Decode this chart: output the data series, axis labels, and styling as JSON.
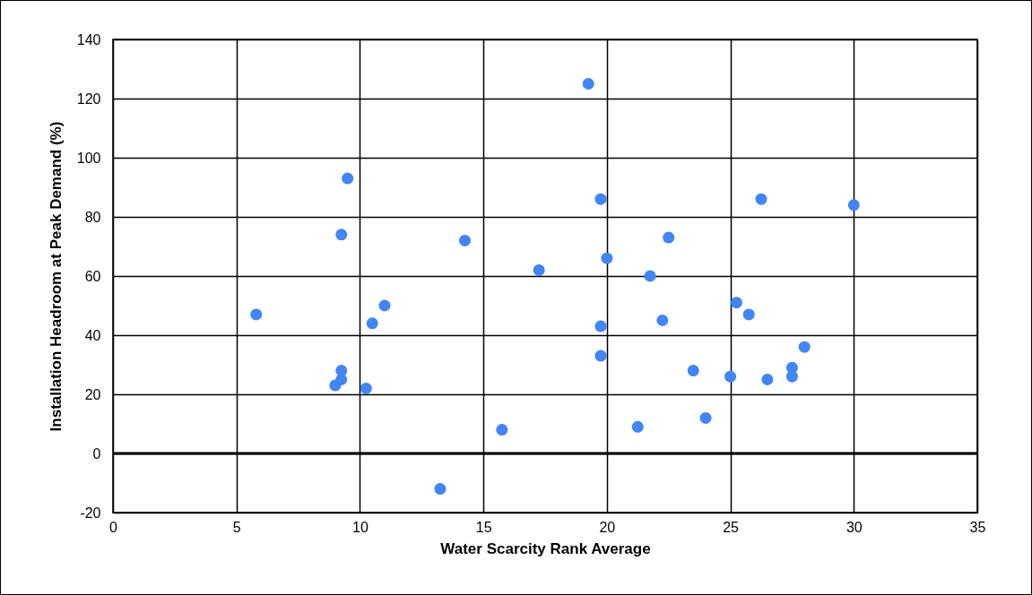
{
  "chart_data": {
    "type": "scatter",
    "xlabel": "Water Scarcity Rank Average",
    "ylabel": "Installation Headroom at Peak Demand (%)",
    "x": [
      5.8,
      9.5,
      9.25,
      9.25,
      9.25,
      9,
      10.25,
      10.5,
      11,
      14.25,
      13.25,
      15.75,
      17.25,
      19.25,
      19.75,
      20,
      19.75,
      19.75,
      21.25,
      21.75,
      22.5,
      22.25,
      23.5,
      24,
      25,
      25.25,
      25.75,
      26.25,
      26.5,
      27.5,
      27.5,
      28,
      30
    ],
    "series": [
      {
        "color": "#4285f4",
        "values": [
          47,
          93,
          74,
          28,
          25,
          23,
          22,
          44,
          50,
          72,
          -12,
          8,
          62,
          125,
          86,
          66,
          43,
          33,
          9,
          60,
          73,
          45,
          28,
          12,
          26,
          51,
          47,
          86,
          25,
          29,
          26,
          36,
          84
        ]
      }
    ],
    "xlim": [
      0,
      35
    ],
    "xticks": [
      0,
      5,
      10,
      15,
      20,
      25,
      30,
      35
    ],
    "ylim": [
      -20,
      140
    ],
    "yticks": [
      -20,
      0,
      20,
      40,
      60,
      80,
      100,
      120,
      140
    ],
    "grid": true,
    "marker": "circle",
    "legend": false,
    "ref_lines": [
      {
        "axis": "y",
        "value": 0,
        "color": "#000000"
      }
    ]
  }
}
